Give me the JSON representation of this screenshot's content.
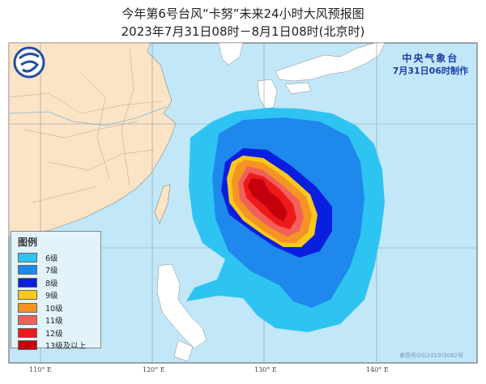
{
  "title": {
    "line1": "今年第6号台风“卡努”未来24小时大风预报图",
    "line2": "2023年7月31日08时－8月1日08时(北京时)"
  },
  "agency": {
    "name": "中央气象台",
    "issued": "7月31日06时制作"
  },
  "legend": {
    "title": "图例",
    "items": [
      {
        "label": "6级",
        "color": "#2ec4f2"
      },
      {
        "label": "7级",
        "color": "#1e88ec"
      },
      {
        "label": "8级",
        "color": "#0a1ee0"
      },
      {
        "label": "9级",
        "color": "#f8c81a"
      },
      {
        "label": "10级",
        "color": "#f39424"
      },
      {
        "label": "11级",
        "color": "#f2605a"
      },
      {
        "label": "12级",
        "color": "#ee1a1a"
      },
      {
        "label": "13级及以上",
        "color": "#c4000c"
      }
    ]
  },
  "longitude_labels": [
    "110° E",
    "120° E",
    "130° E",
    "140° E"
  ],
  "credit": "审图号GS(2019)3082号",
  "colors": {
    "ocean": "#c2e7f8",
    "land_china": "#fbe3c5",
    "land_other": "#ffffff"
  },
  "logo": {
    "icon": "cma-logo-icon"
  }
}
